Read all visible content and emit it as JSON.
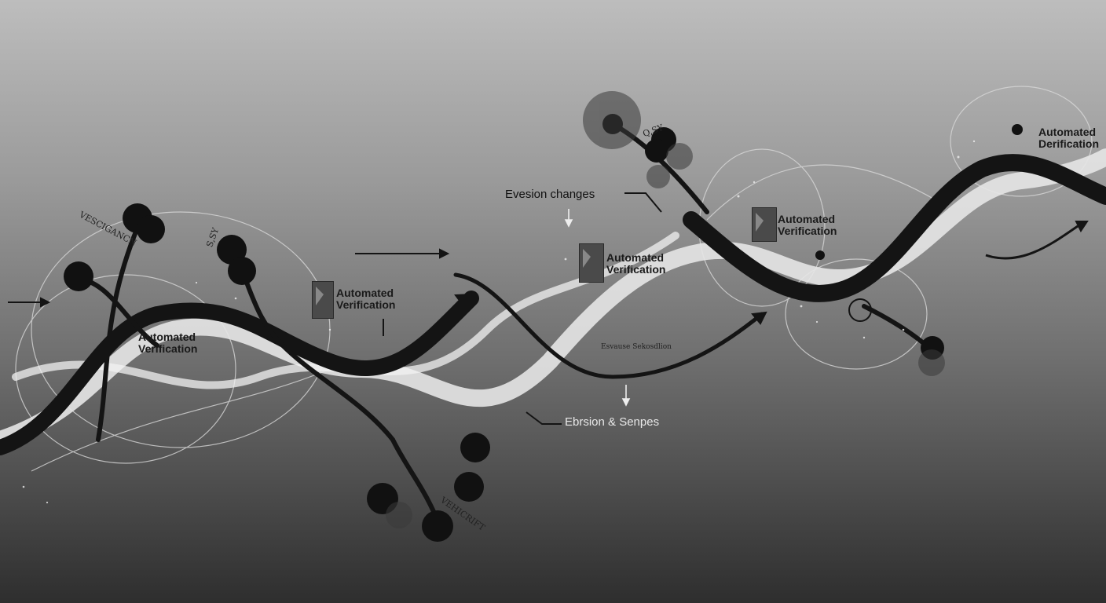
{
  "labels": {
    "automated_verification_1": "Automated Verification",
    "automated_verification_2": "Automated Verification",
    "automated_verification_3": "Automated Verification",
    "automated_verification_left": "Automated Verification",
    "automated_verification_topright": "Automated Derification",
    "evesion_changes": "Evesion changes",
    "ebrsion_senpes": "Ebrsion & Senpes",
    "small_caption": "Esvause Sekosdlion",
    "scrawl_top_left": "VESCIGANCN",
    "scrawl_left_2": "S,SY",
    "scrawl_mid": "Q,SY",
    "scrawl_bottom": "VEHICRIFT"
  },
  "colors": {
    "background_top": "#bdbdbd",
    "background_bottom": "#2e2e2e",
    "dark_ribbon": "#141414",
    "light_ribbon": "#e6e6e6"
  }
}
